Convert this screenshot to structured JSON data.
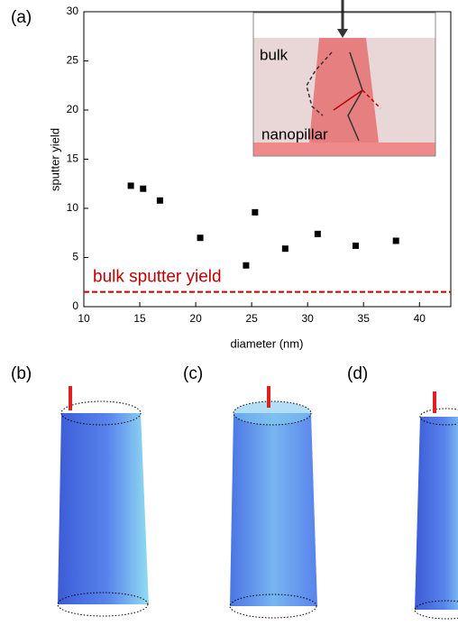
{
  "panels": [
    "(a)",
    "(b)",
    "(c)",
    "(d)"
  ],
  "chart_data": {
    "type": "scatter",
    "x_label": "diameter (nm)",
    "y_label": "sputter yield",
    "x": [
      14.2,
      15.3,
      16.8,
      20.4,
      24.5,
      25.3,
      28.0,
      30.9,
      34.3,
      37.9
    ],
    "values": [
      12.3,
      12.0,
      10.8,
      7.0,
      4.2,
      9.6,
      5.9,
      7.4,
      6.2,
      6.7
    ],
    "color": "#000000",
    "xlim": [
      10,
      42.8
    ],
    "ylim": [
      0,
      30
    ],
    "xticks": [
      10,
      15,
      20,
      25,
      30,
      35,
      40
    ],
    "yticks": [
      0,
      5,
      10,
      15,
      20,
      25,
      30
    ],
    "reference_line": {
      "value": 1.5,
      "label": "bulk sputter yield",
      "color": "#c00000"
    },
    "inset_labels": [
      "bulk",
      "nanopillar"
    ]
  }
}
